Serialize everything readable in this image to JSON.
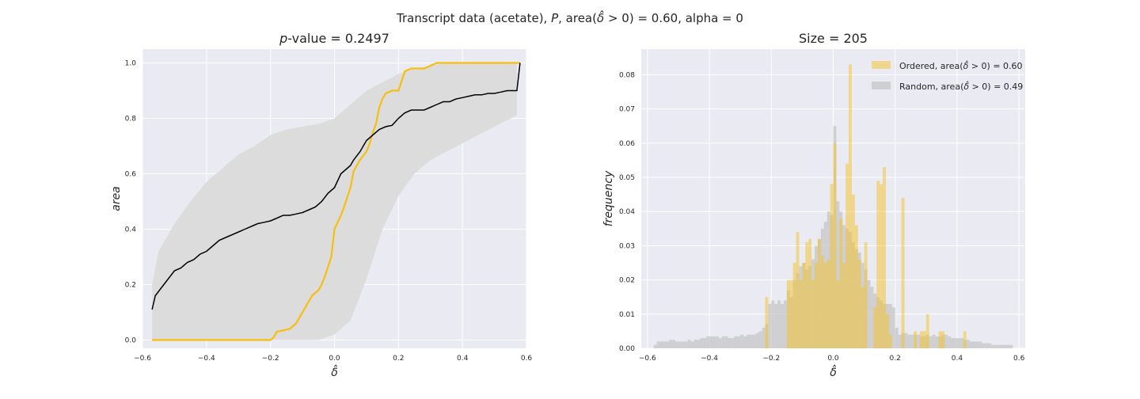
{
  "figure": {
    "suptitle": "Transcript data (acetate), P, area(δ̂ > 0) = 0.60, alpha = 0",
    "suptitle_parts": {
      "pre": "Transcript data (acetate), ",
      "italic": "P",
      "mid": ", area(",
      "delta": "δ̂",
      "post": " > 0) = 0.60, alpha = 0"
    }
  },
  "colors": {
    "background": "#EAEAF2",
    "grid": "#FFFFFF",
    "ordered": "#F6BE0F",
    "mean": "#000000",
    "band": "#DCDCDC",
    "random": "#C6C6C6"
  },
  "chart_data": [
    {
      "type": "line",
      "title": "p-value = 0.2497",
      "title_parts": {
        "italic": "p",
        "rest": "-value = 0.2497"
      },
      "xlabel": "δ̂",
      "ylabel": "area",
      "xlim": [
        -0.6,
        0.6
      ],
      "ylim": [
        -0.03,
        1.05
      ],
      "xticks": [
        -0.6,
        -0.4,
        -0.2,
        0.0,
        0.2,
        0.4,
        0.6
      ],
      "xtick_labels": [
        "−0.6",
        "−0.4",
        "−0.2",
        "0.0",
        "0.2",
        "0.4",
        "0.6"
      ],
      "yticks": [
        0.0,
        0.2,
        0.4,
        0.6,
        0.8,
        1.0
      ],
      "ytick_labels": [
        "0.0",
        "0.2",
        "0.4",
        "0.6",
        "0.8",
        "1.0"
      ],
      "grid": true,
      "series": [
        {
          "role": "band",
          "x": [
            -0.57,
            -0.55,
            -0.5,
            -0.45,
            -0.4,
            -0.35,
            -0.3,
            -0.25,
            -0.2,
            -0.15,
            -0.1,
            -0.05,
            0.0,
            0.05,
            0.1,
            0.15,
            0.2,
            0.25,
            0.3,
            0.35,
            0.4,
            0.45,
            0.5,
            0.55,
            0.57
          ],
          "upper": [
            0.2,
            0.32,
            0.42,
            0.5,
            0.57,
            0.62,
            0.67,
            0.7,
            0.74,
            0.76,
            0.77,
            0.78,
            0.8,
            0.85,
            0.9,
            0.93,
            0.96,
            0.98,
            0.99,
            1.0,
            1.0,
            1.0,
            1.0,
            1.0,
            1.0
          ],
          "lower": [
            0.0,
            0.0,
            0.0,
            0.0,
            0.0,
            0.0,
            0.0,
            0.0,
            0.0,
            0.0,
            0.0,
            0.0,
            0.02,
            0.07,
            0.22,
            0.4,
            0.52,
            0.6,
            0.65,
            0.68,
            0.71,
            0.74,
            0.77,
            0.8,
            0.81
          ]
        },
        {
          "role": "ordered",
          "x": [
            -0.57,
            -0.2,
            -0.19,
            -0.18,
            -0.16,
            -0.14,
            -0.13,
            -0.12,
            -0.11,
            -0.1,
            -0.09,
            -0.07,
            -0.05,
            -0.04,
            -0.03,
            -0.01,
            0.0,
            0.02,
            0.03,
            0.05,
            0.06,
            0.07,
            0.08,
            0.1,
            0.11,
            0.12,
            0.13,
            0.14,
            0.15,
            0.16,
            0.18,
            0.2,
            0.22,
            0.24,
            0.26,
            0.28,
            0.3,
            0.32,
            0.35,
            0.37,
            0.44,
            0.46,
            0.58
          ],
          "y": [
            0.0,
            0.0,
            0.01,
            0.03,
            0.035,
            0.04,
            0.05,
            0.06,
            0.08,
            0.1,
            0.12,
            0.16,
            0.18,
            0.2,
            0.23,
            0.3,
            0.4,
            0.45,
            0.48,
            0.55,
            0.61,
            0.63,
            0.65,
            0.68,
            0.71,
            0.75,
            0.78,
            0.84,
            0.87,
            0.89,
            0.9,
            0.9,
            0.97,
            0.98,
            0.98,
            0.98,
            0.99,
            1.0,
            1.0,
            1.0,
            1.0,
            1.0,
            1.0
          ]
        },
        {
          "role": "mean",
          "x": [
            -0.57,
            -0.56,
            -0.54,
            -0.52,
            -0.5,
            -0.48,
            -0.46,
            -0.44,
            -0.42,
            -0.4,
            -0.38,
            -0.36,
            -0.34,
            -0.32,
            -0.3,
            -0.28,
            -0.26,
            -0.24,
            -0.22,
            -0.2,
            -0.18,
            -0.16,
            -0.14,
            -0.12,
            -0.1,
            -0.08,
            -0.06,
            -0.04,
            -0.02,
            0.0,
            0.02,
            0.04,
            0.05,
            0.06,
            0.08,
            0.1,
            0.12,
            0.14,
            0.16,
            0.18,
            0.2,
            0.22,
            0.24,
            0.26,
            0.28,
            0.3,
            0.32,
            0.34,
            0.36,
            0.38,
            0.4,
            0.42,
            0.44,
            0.46,
            0.48,
            0.5,
            0.52,
            0.54,
            0.56,
            0.57,
            0.58
          ],
          "y": [
            0.11,
            0.16,
            0.19,
            0.22,
            0.25,
            0.26,
            0.28,
            0.29,
            0.31,
            0.32,
            0.34,
            0.36,
            0.37,
            0.38,
            0.39,
            0.4,
            0.41,
            0.42,
            0.425,
            0.43,
            0.44,
            0.45,
            0.45,
            0.455,
            0.46,
            0.47,
            0.48,
            0.5,
            0.53,
            0.55,
            0.6,
            0.62,
            0.63,
            0.65,
            0.68,
            0.72,
            0.74,
            0.76,
            0.77,
            0.775,
            0.8,
            0.82,
            0.83,
            0.83,
            0.83,
            0.84,
            0.85,
            0.86,
            0.86,
            0.87,
            0.875,
            0.88,
            0.885,
            0.885,
            0.89,
            0.89,
            0.895,
            0.9,
            0.9,
            0.9,
            1.0
          ]
        }
      ]
    },
    {
      "type": "bar",
      "title": "Size = 205",
      "xlabel": "δ̂",
      "ylabel": "frequency",
      "xlim": [
        -0.62,
        0.62
      ],
      "ylim": [
        0,
        0.0875
      ],
      "xticks": [
        -0.6,
        -0.4,
        -0.2,
        0.0,
        0.2,
        0.4,
        0.6
      ],
      "xtick_labels": [
        "−0.6",
        "−0.4",
        "−0.2",
        "0.0",
        "0.2",
        "0.4",
        "0.6"
      ],
      "yticks": [
        0.0,
        0.01,
        0.02,
        0.03,
        0.04,
        0.05,
        0.06,
        0.07,
        0.08
      ],
      "ytick_labels": [
        "0.00",
        "0.01",
        "0.02",
        "0.03",
        "0.04",
        "0.05",
        "0.06",
        "0.07",
        "0.08"
      ],
      "grid": true,
      "legend": {
        "placement": "top-right",
        "entries": [
          {
            "pre": "Ordered, area(",
            "delta": "δ̂",
            "post": " > 0) = 0.60"
          },
          {
            "pre": "Random, area(",
            "delta": "δ̂",
            "post": " > 0) = 0.49"
          }
        ]
      },
      "series": [
        {
          "role": "random",
          "bin_width": 0.01,
          "x": [
            -0.58,
            -0.57,
            -0.56,
            -0.55,
            -0.54,
            -0.53,
            -0.52,
            -0.51,
            -0.5,
            -0.49,
            -0.48,
            -0.47,
            -0.46,
            -0.45,
            -0.44,
            -0.43,
            -0.42,
            -0.41,
            -0.4,
            -0.39,
            -0.38,
            -0.37,
            -0.36,
            -0.35,
            -0.34,
            -0.33,
            -0.32,
            -0.31,
            -0.3,
            -0.29,
            -0.28,
            -0.27,
            -0.26,
            -0.25,
            -0.24,
            -0.23,
            -0.22,
            -0.21,
            -0.2,
            -0.19,
            -0.18,
            -0.17,
            -0.16,
            -0.15,
            -0.14,
            -0.13,
            -0.12,
            -0.11,
            -0.1,
            -0.09,
            -0.08,
            -0.07,
            -0.06,
            -0.05,
            -0.04,
            -0.03,
            -0.02,
            -0.01,
            0.0,
            0.01,
            0.02,
            0.03,
            0.04,
            0.05,
            0.06,
            0.07,
            0.08,
            0.09,
            0.1,
            0.11,
            0.12,
            0.13,
            0.14,
            0.15,
            0.16,
            0.17,
            0.18,
            0.19,
            0.2,
            0.21,
            0.22,
            0.23,
            0.24,
            0.25,
            0.26,
            0.27,
            0.28,
            0.29,
            0.3,
            0.31,
            0.32,
            0.33,
            0.34,
            0.35,
            0.36,
            0.37,
            0.38,
            0.39,
            0.4,
            0.41,
            0.42,
            0.43,
            0.44,
            0.45,
            0.46,
            0.47,
            0.48,
            0.49,
            0.5,
            0.51,
            0.52,
            0.53,
            0.54,
            0.55,
            0.56,
            0.57
          ],
          "values": [
            0.001,
            0.002,
            0.002,
            0.002,
            0.002,
            0.0025,
            0.0025,
            0.002,
            0.002,
            0.002,
            0.002,
            0.0025,
            0.002,
            0.0025,
            0.0025,
            0.003,
            0.003,
            0.0035,
            0.0035,
            0.0035,
            0.0035,
            0.003,
            0.0035,
            0.0035,
            0.003,
            0.003,
            0.0035,
            0.0035,
            0.004,
            0.0035,
            0.004,
            0.004,
            0.004,
            0.0045,
            0.005,
            0.006,
            0.007,
            0.013,
            0.014,
            0.013,
            0.014,
            0.013,
            0.014,
            0.017,
            0.015,
            0.02,
            0.022,
            0.024,
            0.025,
            0.023,
            0.024,
            0.026,
            0.03,
            0.032,
            0.035,
            0.037,
            0.04,
            0.039,
            0.065,
            0.043,
            0.04,
            0.036,
            0.035,
            0.034,
            0.031,
            0.029,
            0.028,
            0.025,
            0.023,
            0.02,
            0.018,
            0.016,
            0.015,
            0.014,
            0.013,
            0.013,
            0.013,
            0.012,
            0.006,
            0.004,
            0.0045,
            0.0045,
            0.004,
            0.004,
            0.004,
            0.004,
            0.0035,
            0.0035,
            0.004,
            0.0035,
            0.004,
            0.0035,
            0.0035,
            0.004,
            0.004,
            0.0035,
            0.003,
            0.003,
            0.003,
            0.003,
            0.0025,
            0.0025,
            0.002,
            0.002,
            0.002,
            0.002,
            0.0015,
            0.0015,
            0.0015,
            0.001,
            0.001,
            0.001,
            0.001,
            0.001,
            0.001,
            0.001
          ]
        },
        {
          "role": "ordered",
          "bin_width": 0.01,
          "x": [
            -0.22,
            -0.21,
            -0.2,
            -0.19,
            -0.18,
            -0.17,
            -0.16,
            -0.15,
            -0.14,
            -0.13,
            -0.12,
            -0.11,
            -0.1,
            -0.09,
            -0.08,
            -0.07,
            -0.06,
            -0.05,
            -0.04,
            -0.03,
            -0.02,
            -0.01,
            0.0,
            0.01,
            0.02,
            0.03,
            0.04,
            0.05,
            0.06,
            0.07,
            0.08,
            0.09,
            0.1,
            0.11,
            0.12,
            0.13,
            0.14,
            0.15,
            0.16,
            0.17,
            0.18,
            0.19,
            0.2,
            0.21,
            0.22,
            0.23,
            0.24,
            0.25,
            0.26,
            0.27,
            0.28,
            0.29,
            0.3,
            0.31,
            0.32,
            0.33,
            0.34,
            0.35,
            0.36,
            0.37,
            0.38,
            0.39,
            0.4,
            0.41,
            0.42,
            0.43
          ],
          "values": [
            0.015,
            0.0,
            0.0,
            0.0,
            0.0,
            0.0,
            0.0,
            0.02,
            0.02,
            0.025,
            0.034,
            0.02,
            0.025,
            0.031,
            0.032,
            0.02,
            0.025,
            0.032,
            0.027,
            0.025,
            0.026,
            0.048,
            0.06,
            0.02,
            0.038,
            0.025,
            0.054,
            0.083,
            0.045,
            0.036,
            0.026,
            0.018,
            0.031,
            0.0,
            0.0,
            0.012,
            0.049,
            0.048,
            0.053,
            0.01,
            0.004,
            0.0,
            0.0,
            0.0,
            0.044,
            0.0,
            0.0,
            0.0,
            0.005,
            0.0,
            0.005,
            0.005,
            0.01,
            0.0,
            0.0,
            0.0,
            0.005,
            0.005,
            0.0,
            0.0,
            0.0,
            0.0,
            0.0,
            0.0,
            0.005,
            0.0
          ]
        }
      ]
    }
  ]
}
